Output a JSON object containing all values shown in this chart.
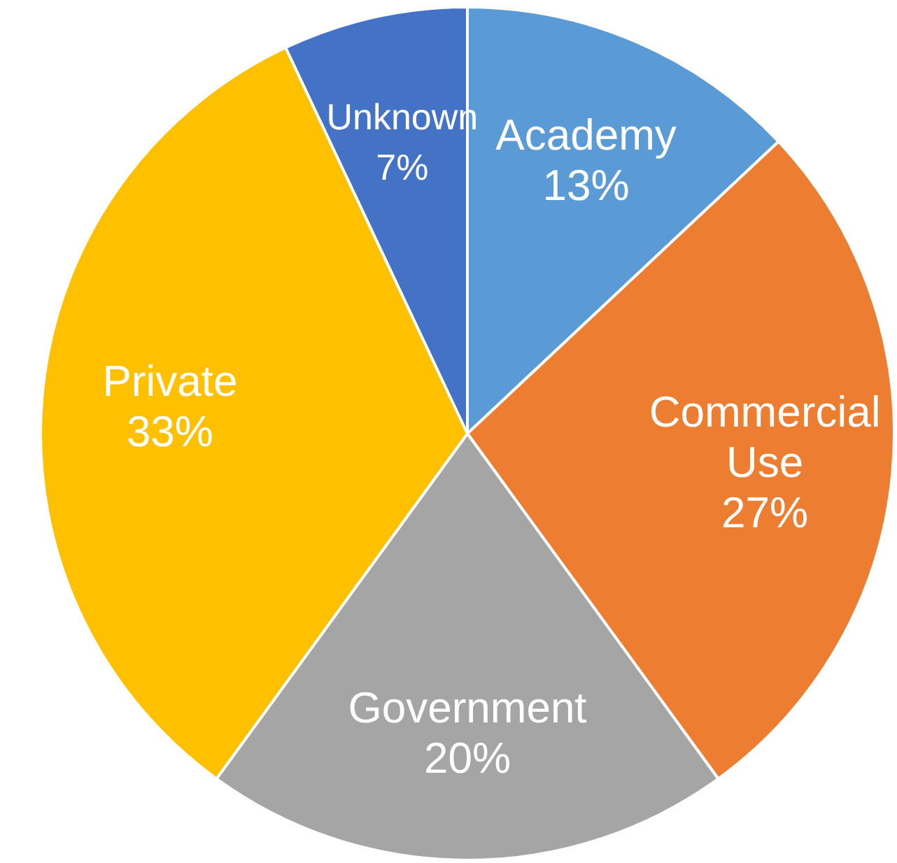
{
  "chart_data": {
    "type": "pie",
    "categories": [
      "Academy",
      "Commercial Use",
      "Government",
      "Private",
      "Unknown"
    ],
    "values": [
      13,
      27,
      20,
      33,
      7
    ],
    "value_labels": [
      "13%",
      "27%",
      "20%",
      "33%",
      "7%"
    ],
    "colors": [
      "#5b9bd5",
      "#ed7d31",
      "#a5a5a5",
      "#ffc000",
      "#4472c4"
    ]
  }
}
